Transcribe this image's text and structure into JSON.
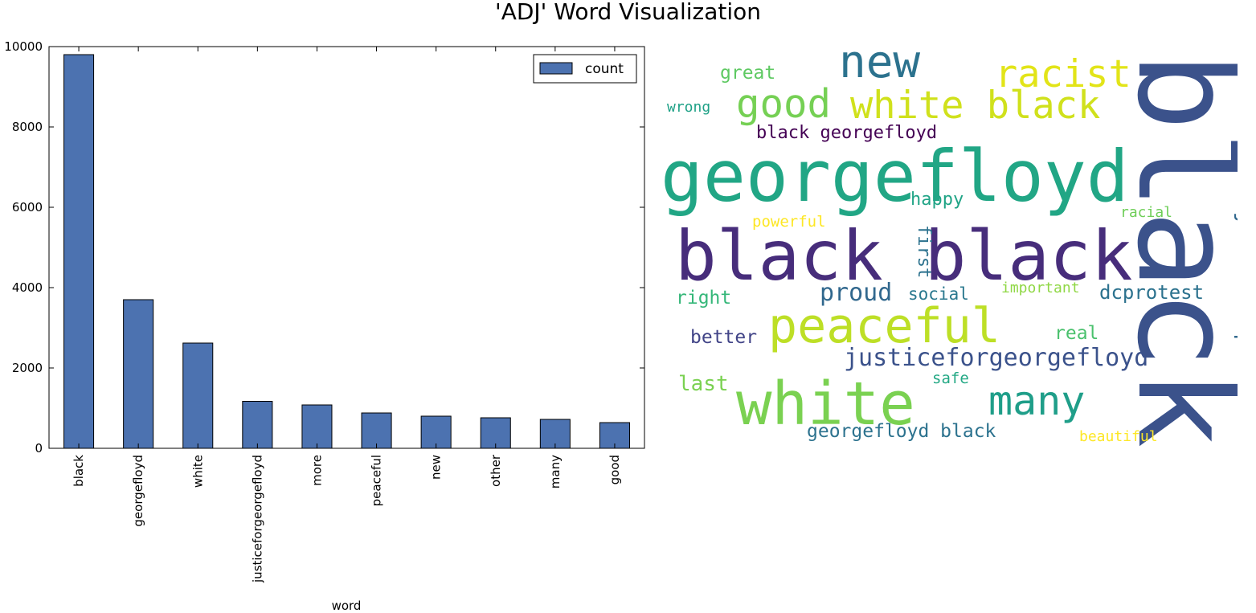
{
  "figure_title": "'ADJ' Word Visualization",
  "chart_data": [
    {
      "type": "bar",
      "categories": [
        "black",
        "georgefloyd",
        "white",
        "justiceforgeorgefloyd",
        "more",
        "peaceful",
        "new",
        "other",
        "many",
        "good"
      ],
      "series": [
        {
          "name": "count",
          "values": [
            9800,
            3700,
            2620,
            1170,
            1080,
            880,
            800,
            760,
            720,
            640
          ],
          "color": "#4c72b0"
        }
      ],
      "xlabel": "word",
      "ylabel": "",
      "ylim": [
        0,
        10000
      ],
      "yticks": [
        0,
        2000,
        4000,
        6000,
        8000,
        10000
      ],
      "legend": {
        "position": "top-right",
        "entries": [
          "count"
        ]
      },
      "grid": false
    },
    {
      "type": "wordcloud",
      "words": [
        {
          "text": "black",
          "color": "#3b528b",
          "orient": "vertical"
        },
        {
          "text": "georgefloyd",
          "color": "#21a685",
          "orient": "horizontal"
        },
        {
          "text": "black black",
          "color": "#472d7b",
          "orient": "horizontal"
        },
        {
          "text": "white",
          "color": "#7ad151",
          "orient": "horizontal"
        },
        {
          "text": "peaceful",
          "color": "#bddf26",
          "orient": "horizontal"
        },
        {
          "text": "new",
          "color": "#2c728e",
          "orient": "horizontal"
        },
        {
          "text": "racist",
          "color": "#e2e418",
          "orient": "horizontal"
        },
        {
          "text": "white black",
          "color": "#d0e11c",
          "orient": "horizontal"
        },
        {
          "text": "good",
          "color": "#75d054",
          "orient": "horizontal"
        },
        {
          "text": "many",
          "color": "#1f9e89",
          "orient": "horizontal"
        },
        {
          "text": "justiceforgeorgefloyd",
          "color": "#3b528b",
          "orient": "horizontal"
        },
        {
          "text": "nojusticenopeace",
          "color": "#31688e",
          "orient": "vertical"
        },
        {
          "text": "proud",
          "color": "#31688e",
          "orient": "horizontal"
        },
        {
          "text": "dcprotest",
          "color": "#2c728e",
          "orient": "horizontal"
        },
        {
          "text": "georgefloyd black",
          "color": "#2c728e",
          "orient": "horizontal"
        },
        {
          "text": "black georgefloyd",
          "color": "#440154",
          "orient": "horizontal"
        },
        {
          "text": "better",
          "color": "#414487",
          "orient": "horizontal"
        },
        {
          "text": "first",
          "color": "#2c728e",
          "orient": "vertical"
        },
        {
          "text": "great",
          "color": "#5ec962",
          "orient": "horizontal"
        },
        {
          "text": "happy",
          "color": "#20a486",
          "orient": "horizontal"
        },
        {
          "text": "real",
          "color": "#4ac16d",
          "orient": "horizontal"
        },
        {
          "text": "last",
          "color": "#7ad151",
          "orient": "horizontal"
        },
        {
          "text": "right",
          "color": "#35b779",
          "orient": "horizontal"
        },
        {
          "text": "social",
          "color": "#2a788e",
          "orient": "horizontal"
        },
        {
          "text": "important",
          "color": "#8fd744",
          "orient": "horizontal"
        },
        {
          "text": "powerful",
          "color": "#fde725",
          "orient": "horizontal"
        },
        {
          "text": "racial",
          "color": "#6ece58",
          "orient": "horizontal"
        },
        {
          "text": "wrong",
          "color": "#1fa187",
          "orient": "horizontal"
        },
        {
          "text": "safe",
          "color": "#22a884",
          "orient": "horizontal"
        },
        {
          "text": "beautiful",
          "color": "#fde725",
          "orient": "horizontal"
        }
      ]
    }
  ]
}
